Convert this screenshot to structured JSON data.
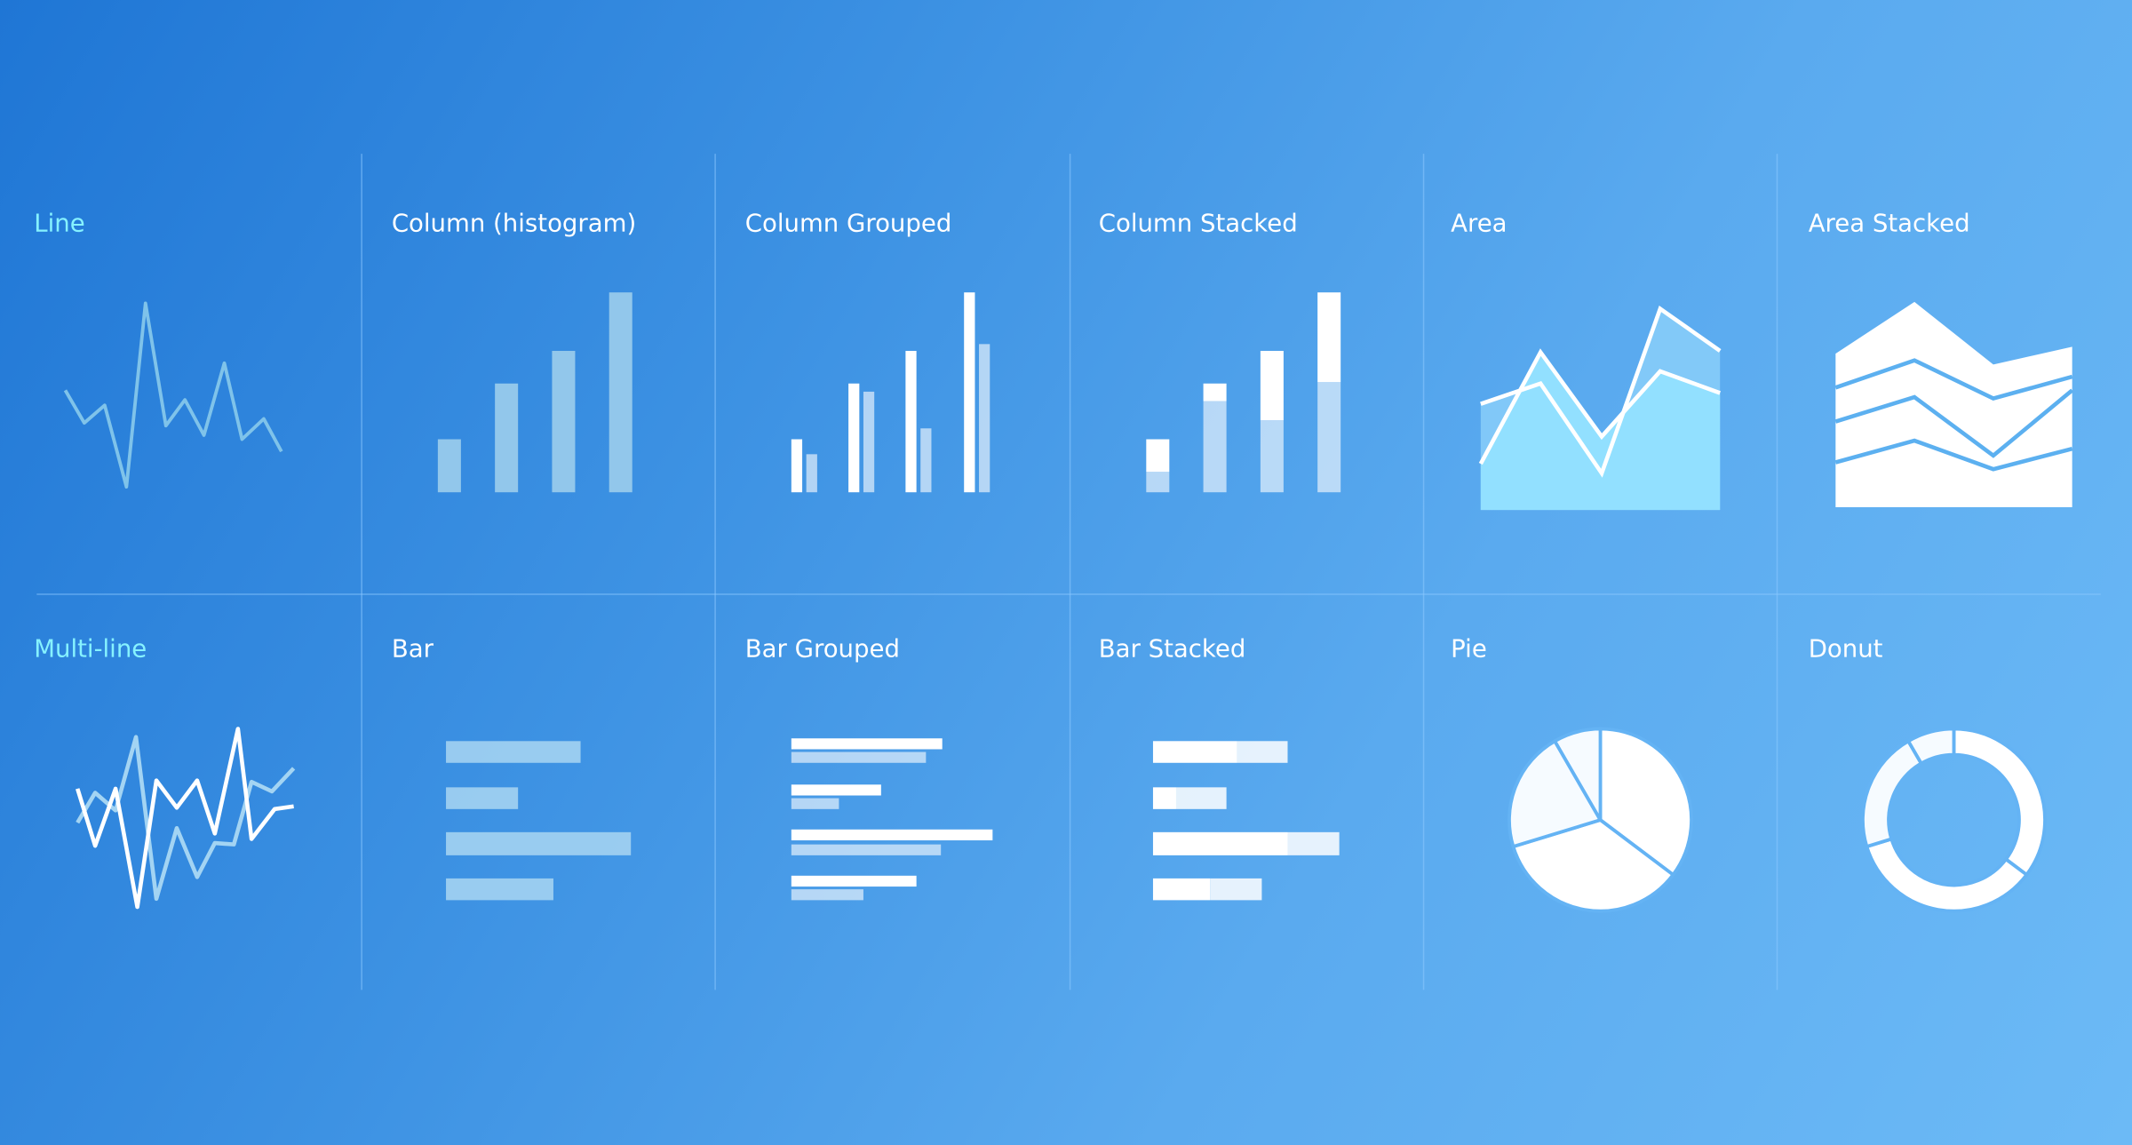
{
  "tiles": [
    {
      "label": "Line",
      "icon": "line-chart-icon"
    },
    {
      "label": "Column (histogram)",
      "icon": "column-chart-icon"
    },
    {
      "label": "Column Grouped",
      "icon": "column-grouped-chart-icon"
    },
    {
      "label": "Column Stacked",
      "icon": "column-stacked-chart-icon"
    },
    {
      "label": "Area",
      "icon": "area-chart-icon"
    },
    {
      "label": "Area Stacked",
      "icon": "area-stacked-chart-icon"
    },
    {
      "label": "Multi-line",
      "icon": "multi-line-chart-icon"
    },
    {
      "label": "Bar",
      "icon": "bar-chart-icon"
    },
    {
      "label": "Bar Grouped",
      "icon": "bar-grouped-chart-icon"
    },
    {
      "label": "Bar Stacked",
      "icon": "bar-stacked-chart-icon"
    },
    {
      "label": "Pie",
      "icon": "pie-chart-icon"
    },
    {
      "label": "Donut",
      "icon": "donut-chart-icon"
    }
  ],
  "colors": {
    "background_start": "#1f76d5",
    "background_end": "#6cbaf6",
    "accent_label": "#86f2ff",
    "label": "#ffffff"
  }
}
